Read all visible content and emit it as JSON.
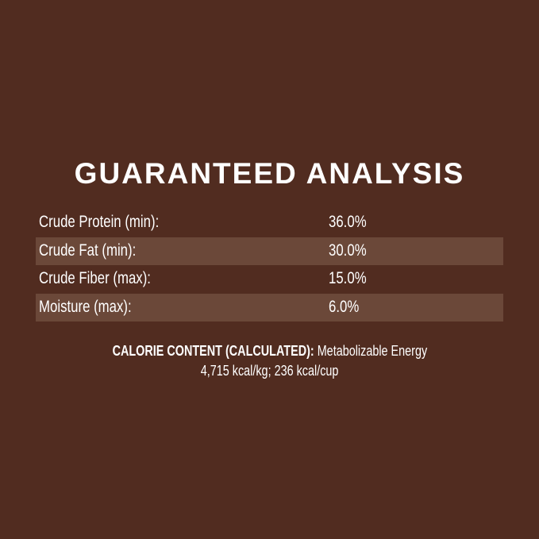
{
  "title": "GUARANTEED ANALYSIS",
  "rows": [
    {
      "label": "Crude Protein (min):",
      "value": "36.0%"
    },
    {
      "label": "Crude Fat (min):",
      "value": "30.0%"
    },
    {
      "label": "Crude Fiber (max):",
      "value": "15.0%"
    },
    {
      "label": "Moisture (max):",
      "value": "6.0%"
    }
  ],
  "calorie": {
    "heading": "CALORIE CONTENT (CALCULATED):",
    "text1": " Metabolizable Energy",
    "text2": "4,715 kcal/kg; 236 kcal/cup"
  },
  "colors": {
    "background": "#512c20",
    "stripe": "#6b4839",
    "text": "#ffffff"
  }
}
